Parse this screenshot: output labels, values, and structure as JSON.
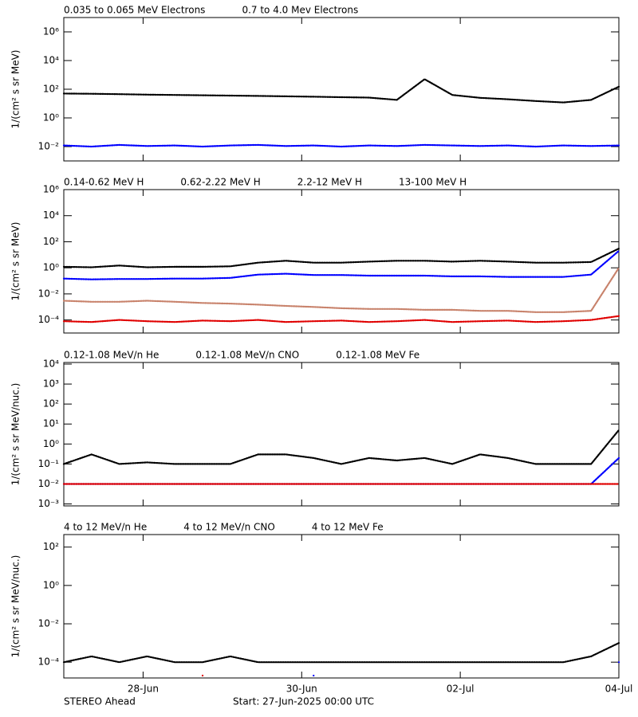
{
  "chart_data": [
    {
      "type": "scatter",
      "log_y": true,
      "ylabel": "1/(cm² s sr MeV)",
      "xlim": [
        0,
        7
      ],
      "xticks": [
        1,
        3,
        5,
        7
      ],
      "ylim": [
        0.001,
        10000000
      ],
      "yticks": [
        {
          "value": 0.01,
          "label": "10⁻²"
        },
        {
          "value": 1,
          "label": "10⁰"
        },
        {
          "value": 100,
          "label": "10²"
        },
        {
          "value": 10000,
          "label": "10⁴"
        },
        {
          "value": 1000000,
          "label": "10⁶"
        }
      ],
      "x": [
        0,
        0.35,
        0.7,
        1.05,
        1.4,
        1.75,
        2.1,
        2.45,
        2.8,
        3.15,
        3.5,
        3.85,
        4.2,
        4.55,
        4.9,
        5.25,
        5.6,
        5.95,
        6.3,
        6.65,
        7
      ],
      "series": [
        {
          "name": "0.035 to 0.065 MeV Electrons",
          "color": "#000000",
          "values": [
            50,
            48,
            45,
            42,
            40,
            38,
            36,
            34,
            32,
            30,
            28,
            26,
            18,
            500,
            40,
            25,
            20,
            15,
            12,
            18,
            150
          ]
        },
        {
          "name": "0.7 to 4.0 Mev Electrons",
          "color": "#0000ff",
          "values": [
            0.012,
            0.01,
            0.013,
            0.011,
            0.012,
            0.01,
            0.012,
            0.013,
            0.011,
            0.012,
            0.01,
            0.012,
            0.011,
            0.013,
            0.012,
            0.011,
            0.012,
            0.01,
            0.012,
            0.011,
            0.012
          ]
        }
      ]
    },
    {
      "type": "scatter",
      "log_y": true,
      "ylabel": "1/(cm² s sr MeV)",
      "xlim": [
        0,
        7
      ],
      "xticks": [
        1,
        3,
        5,
        7
      ],
      "ylim": [
        1e-05,
        1000000
      ],
      "yticks": [
        {
          "value": 0.0001,
          "label": "10⁻⁴"
        },
        {
          "value": 0.01,
          "label": "10⁻²"
        },
        {
          "value": 1,
          "label": "10⁰"
        },
        {
          "value": 100,
          "label": "10²"
        },
        {
          "value": 10000,
          "label": "10⁴"
        },
        {
          "value": 1000000,
          "label": "10⁶"
        }
      ],
      "x": [
        0,
        0.35,
        0.7,
        1.05,
        1.4,
        1.75,
        2.1,
        2.45,
        2.8,
        3.15,
        3.5,
        3.85,
        4.2,
        4.55,
        4.9,
        5.25,
        5.6,
        5.95,
        6.3,
        6.65,
        7
      ],
      "series": [
        {
          "name": "0.14-0.62 MeV H",
          "color": "#000000",
          "values": [
            1.2,
            1.1,
            1.5,
            1.1,
            1.2,
            1.2,
            1.3,
            2.5,
            3.5,
            2.5,
            2.5,
            3,
            3.5,
            3.5,
            3,
            3.5,
            3,
            2.5,
            2.5,
            2.8,
            30
          ]
        },
        {
          "name": "0.62-2.22 MeV H",
          "color": "#0000ff",
          "values": [
            0.15,
            0.13,
            0.14,
            0.14,
            0.15,
            0.15,
            0.17,
            0.3,
            0.35,
            0.28,
            0.28,
            0.25,
            0.25,
            0.25,
            0.22,
            0.22,
            0.2,
            0.2,
            0.2,
            0.3,
            20
          ]
        },
        {
          "name": "2.2-12 MeV H",
          "color": "#c8826b",
          "values": [
            0.003,
            0.0025,
            0.0025,
            0.003,
            0.0025,
            0.002,
            0.0018,
            0.0015,
            0.0012,
            0.001,
            0.0008,
            0.0007,
            0.0007,
            0.0006,
            0.0006,
            0.0005,
            0.0005,
            0.0004,
            0.0004,
            0.0005,
            1
          ]
        },
        {
          "name": "13-100 MeV H",
          "color": "#e00000",
          "values": [
            8e-05,
            7e-05,
            0.0001,
            8e-05,
            7e-05,
            9e-05,
            8e-05,
            0.0001,
            7e-05,
            8e-05,
            9e-05,
            7e-05,
            8e-05,
            0.0001,
            7e-05,
            8e-05,
            9e-05,
            7e-05,
            8e-05,
            0.0001,
            0.0002
          ]
        }
      ]
    },
    {
      "type": "scatter",
      "log_y": true,
      "ylabel": "1/(cm² s sr MeV/nuc.)",
      "xlim": [
        0,
        7
      ],
      "xticks": [
        1,
        3,
        5,
        7
      ],
      "ylim": [
        0.0008,
        12000
      ],
      "yticks": [
        {
          "value": 0.001,
          "label": "10⁻³"
        },
        {
          "value": 0.01,
          "label": "10⁻²"
        },
        {
          "value": 0.1,
          "label": "10⁻¹"
        },
        {
          "value": 1,
          "label": "10⁰"
        },
        {
          "value": 10,
          "label": "10¹"
        },
        {
          "value": 100,
          "label": "10²"
        },
        {
          "value": 1000,
          "label": "10³"
        },
        {
          "value": 10000,
          "label": "10⁴"
        }
      ],
      "x": [
        0,
        0.35,
        0.7,
        1.05,
        1.4,
        1.75,
        2.1,
        2.45,
        2.8,
        3.15,
        3.5,
        3.85,
        4.2,
        4.55,
        4.9,
        5.25,
        5.6,
        5.95,
        6.3,
        6.65,
        7
      ],
      "series": [
        {
          "name": "0.12-1.08 MeV/n He",
          "color": "#000000",
          "values": [
            0.1,
            0.3,
            0.1,
            0.12,
            0.1,
            0.1,
            0.1,
            0.3,
            0.3,
            0.2,
            0.1,
            0.2,
            0.15,
            0.2,
            0.1,
            0.3,
            0.2,
            0.1,
            0.1,
            0.1,
            5
          ]
        },
        {
          "name": "0.12-1.08 MeV/n CNO",
          "color": "#0000ff",
          "values": [
            0.01,
            0.01,
            0.01,
            0.01,
            0.01,
            0.01,
            0.01,
            0.01,
            0.01,
            0.01,
            0.01,
            0.01,
            0.01,
            0.01,
            0.01,
            0.01,
            0.01,
            0.01,
            0.01,
            0.01,
            0.2
          ]
        },
        {
          "name": "0.12-1.08 MeV Fe",
          "color": "#e00000",
          "values": [
            0.01,
            0.01,
            0.01,
            0.01,
            0.01,
            0.01,
            0.01,
            0.01,
            0.01,
            0.01,
            0.01,
            0.01,
            0.01,
            0.01,
            0.01,
            0.01,
            0.01,
            0.01,
            0.01,
            0.01,
            0.01
          ]
        }
      ]
    },
    {
      "type": "scatter",
      "log_y": true,
      "ylabel": "1/(cm² s sr MeV/nuc.)",
      "xlim": [
        0,
        7
      ],
      "xticks": [
        {
          "value": 1,
          "label": "28-Jun"
        },
        {
          "value": 3,
          "label": "30-Jun"
        },
        {
          "value": 5,
          "label": "02-Jul"
        },
        {
          "value": 7,
          "label": "04-Jul"
        }
      ],
      "ylim": [
        1.5e-05,
        450
      ],
      "yticks": [
        {
          "value": 0.0001,
          "label": "10⁻⁴"
        },
        {
          "value": 0.01,
          "label": "10⁻²"
        },
        {
          "value": 1,
          "label": "10⁰"
        },
        {
          "value": 100,
          "label": "10²"
        }
      ],
      "x": [
        0,
        0.35,
        0.7,
        1.05,
        1.4,
        1.75,
        2.1,
        2.45,
        2.8,
        3.15,
        3.5,
        3.85,
        4.2,
        4.55,
        4.9,
        5.25,
        5.6,
        5.95,
        6.3,
        6.65,
        7
      ],
      "series": [
        {
          "name": "4 to 12 MeV/n He",
          "color": "#000000",
          "values": [
            0.0001,
            0.0002,
            0.0001,
            0.0002,
            0.0001,
            0.0001,
            0.0002,
            0.0001,
            0.0001,
            0.0001,
            0.0001,
            0.0001,
            0.0001,
            0.0001,
            0.0001,
            0.0001,
            0.0001,
            0.0001,
            0.0001,
            0.0002,
            0.001
          ]
        },
        {
          "name": "4 to 12 MeV/n CNO",
          "color": "#0000ff",
          "values": [
            null,
            null,
            null,
            null,
            null,
            null,
            null,
            null,
            null,
            2e-05,
            null,
            null,
            null,
            null,
            null,
            null,
            null,
            null,
            null,
            null,
            0.0001
          ]
        },
        {
          "name": "4 to 12 MeV Fe",
          "color": "#e00000",
          "values": [
            null,
            null,
            null,
            null,
            null,
            2e-05,
            null,
            null,
            null,
            null,
            null,
            null,
            null,
            null,
            null,
            null,
            null,
            null,
            null,
            null,
            null
          ]
        }
      ]
    }
  ],
  "footer": {
    "left": "STEREO Ahead",
    "center": "Start: 27-Jun-2025 00:00 UTC"
  }
}
